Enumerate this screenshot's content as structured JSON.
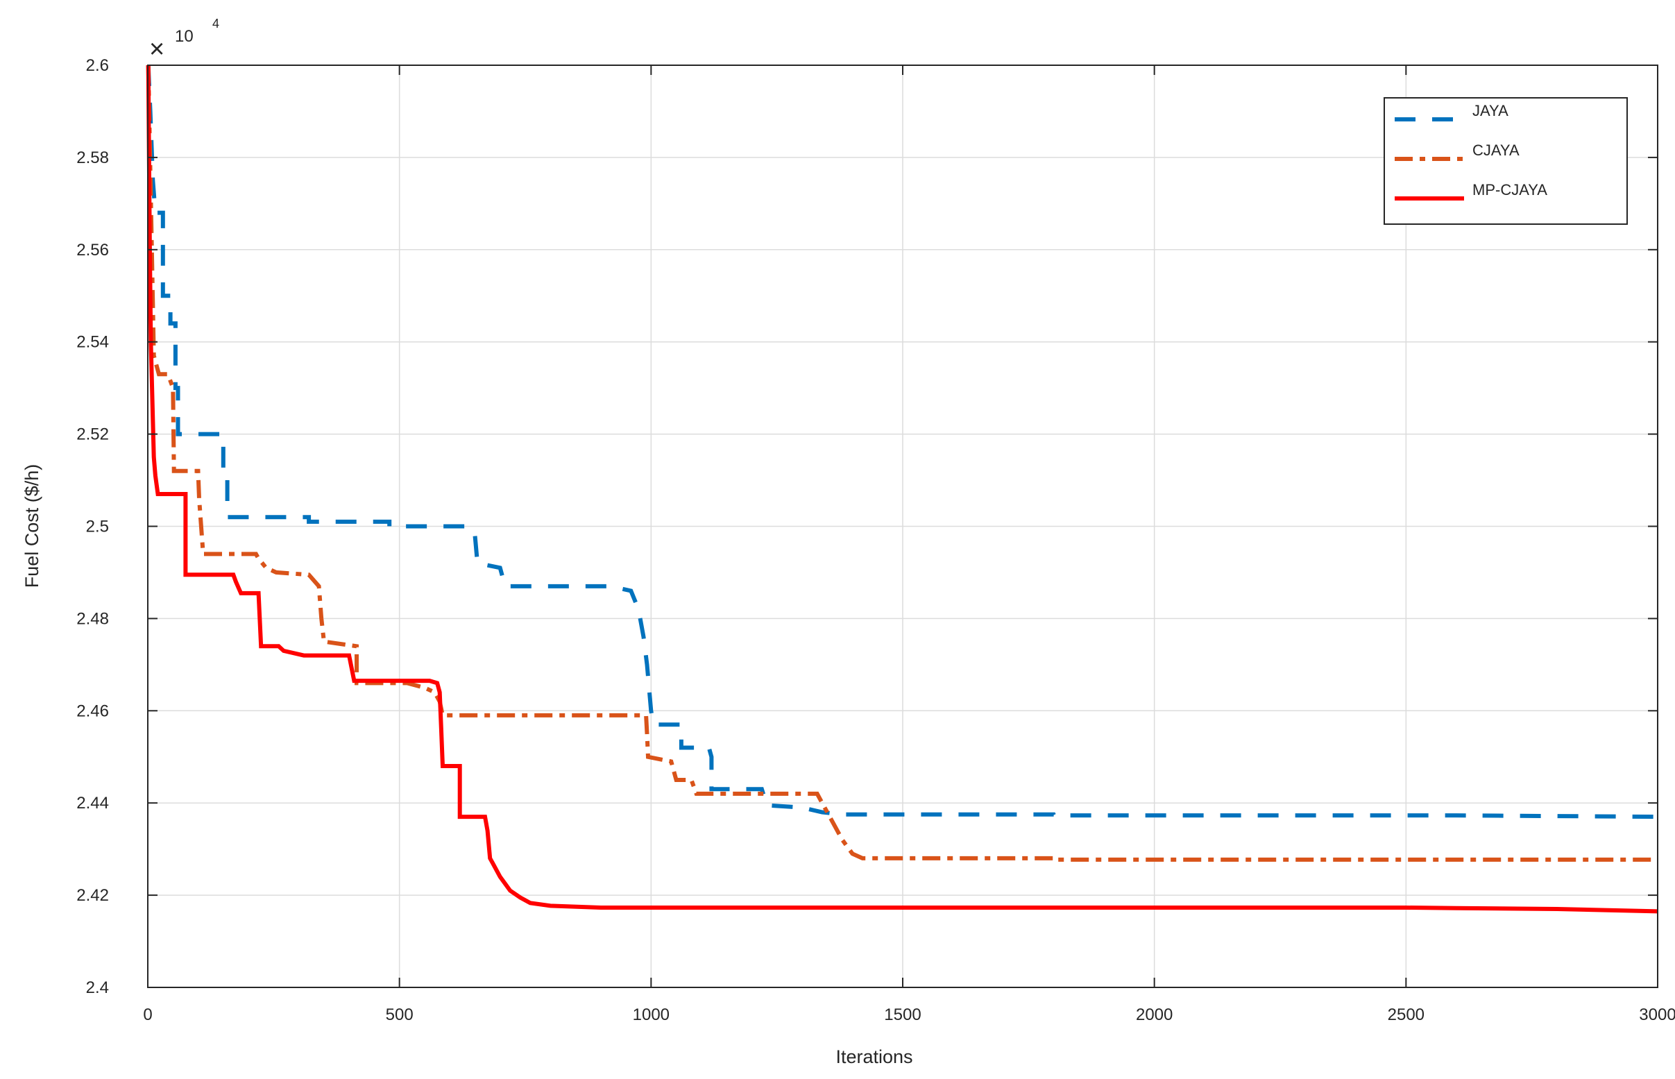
{
  "chart_data": {
    "type": "line",
    "xlabel": "Iterations",
    "ylabel": "Fuel Cost ($/h)",
    "xlim": [
      0,
      3000
    ],
    "ylim": [
      24000,
      26000
    ],
    "y_multiplier": {
      "symbol": "×",
      "base": "10",
      "exponent": "4"
    },
    "grid": true,
    "legend_position": "top-right",
    "x_ticks": [
      0,
      500,
      1000,
      1500,
      2000,
      2500,
      3000
    ],
    "x_tick_labels": [
      "0",
      "500",
      "1000",
      "1500",
      "2000",
      "2500",
      "3000"
    ],
    "y_ticks": [
      24000,
      24200,
      24400,
      24600,
      24800,
      25000,
      25200,
      25400,
      25600,
      25800,
      26000
    ],
    "y_tick_labels": [
      "2.4",
      "2.42",
      "2.44",
      "2.46",
      "2.48",
      "2.5",
      "2.52",
      "2.54",
      "2.56",
      "2.58",
      "2.6"
    ],
    "series": [
      {
        "name": "JAYA",
        "color": "#0072BD",
        "style": "dashed",
        "points": [
          [
            1,
            26000
          ],
          [
            5,
            25900
          ],
          [
            10,
            25750
          ],
          [
            15,
            25680
          ],
          [
            30,
            25680
          ],
          [
            30,
            25500
          ],
          [
            45,
            25500
          ],
          [
            45,
            25440
          ],
          [
            55,
            25440
          ],
          [
            55,
            25300
          ],
          [
            60,
            25300
          ],
          [
            60,
            25200
          ],
          [
            150,
            25200
          ],
          [
            150,
            25100
          ],
          [
            158,
            25100
          ],
          [
            158,
            25020
          ],
          [
            320,
            25020
          ],
          [
            320,
            25010
          ],
          [
            480,
            25010
          ],
          [
            480,
            25000
          ],
          [
            640,
            25000
          ],
          [
            650,
            24980
          ],
          [
            655,
            24920
          ],
          [
            700,
            24910
          ],
          [
            710,
            24870
          ],
          [
            920,
            24870
          ],
          [
            960,
            24860
          ],
          [
            975,
            24820
          ],
          [
            985,
            24760
          ],
          [
            992,
            24700
          ],
          [
            1000,
            24600
          ],
          [
            1005,
            24570
          ],
          [
            1060,
            24570
          ],
          [
            1060,
            24520
          ],
          [
            1115,
            24520
          ],
          [
            1120,
            24500
          ],
          [
            1120,
            24430
          ],
          [
            1220,
            24430
          ],
          [
            1230,
            24395
          ],
          [
            1300,
            24390
          ],
          [
            1340,
            24380
          ],
          [
            1380,
            24375
          ],
          [
            1500,
            24375
          ],
          [
            1800,
            24375
          ],
          [
            1801,
            24373
          ],
          [
            2400,
            24373
          ],
          [
            2600,
            24373
          ],
          [
            3000,
            24370
          ]
        ]
      },
      {
        "name": "CJAYA",
        "color": "#D95319",
        "style": "dashdot",
        "points": [
          [
            1,
            26000
          ],
          [
            8,
            25600
          ],
          [
            12,
            25370
          ],
          [
            22,
            25330
          ],
          [
            40,
            25330
          ],
          [
            50,
            25300
          ],
          [
            52,
            25120
          ],
          [
            100,
            25120
          ],
          [
            102,
            25060
          ],
          [
            106,
            25000
          ],
          [
            110,
            24940
          ],
          [
            215,
            24940
          ],
          [
            220,
            24930
          ],
          [
            235,
            24910
          ],
          [
            255,
            24900
          ],
          [
            320,
            24895
          ],
          [
            340,
            24870
          ],
          [
            345,
            24800
          ],
          [
            350,
            24750
          ],
          [
            415,
            24740
          ],
          [
            415,
            24660
          ],
          [
            515,
            24660
          ],
          [
            550,
            24650
          ],
          [
            570,
            24640
          ],
          [
            580,
            24620
          ],
          [
            586,
            24590
          ],
          [
            990,
            24590
          ],
          [
            992,
            24550
          ],
          [
            994,
            24500
          ],
          [
            1040,
            24490
          ],
          [
            1050,
            24450
          ],
          [
            1080,
            24450
          ],
          [
            1090,
            24420
          ],
          [
            1330,
            24420
          ],
          [
            1340,
            24400
          ],
          [
            1360,
            24360
          ],
          [
            1380,
            24320
          ],
          [
            1400,
            24290
          ],
          [
            1420,
            24280
          ],
          [
            1800,
            24280
          ],
          [
            1800,
            24277
          ],
          [
            3000,
            24277
          ]
        ]
      },
      {
        "name": "MP-CJAYA",
        "color": "#FF0000",
        "style": "solid",
        "points": [
          [
            1,
            26000
          ],
          [
            4,
            25600
          ],
          [
            6,
            25400
          ],
          [
            12,
            25150
          ],
          [
            15,
            25110
          ],
          [
            20,
            25070
          ],
          [
            75,
            25070
          ],
          [
            75,
            24895
          ],
          [
            170,
            24895
          ],
          [
            175,
            24880
          ],
          [
            185,
            24855
          ],
          [
            220,
            24855
          ],
          [
            225,
            24740
          ],
          [
            260,
            24740
          ],
          [
            270,
            24730
          ],
          [
            310,
            24720
          ],
          [
            400,
            24720
          ],
          [
            410,
            24665
          ],
          [
            560,
            24665
          ],
          [
            575,
            24660
          ],
          [
            580,
            24640
          ],
          [
            583,
            24560
          ],
          [
            586,
            24480
          ],
          [
            620,
            24480
          ],
          [
            620,
            24370
          ],
          [
            670,
            24370
          ],
          [
            675,
            24340
          ],
          [
            680,
            24280
          ],
          [
            685,
            24270
          ],
          [
            700,
            24240
          ],
          [
            720,
            24210
          ],
          [
            740,
            24195
          ],
          [
            760,
            24183
          ],
          [
            800,
            24177
          ],
          [
            900,
            24173
          ],
          [
            2500,
            24173
          ],
          [
            2600,
            24172
          ],
          [
            2800,
            24170
          ],
          [
            3000,
            24165
          ]
        ]
      }
    ]
  }
}
